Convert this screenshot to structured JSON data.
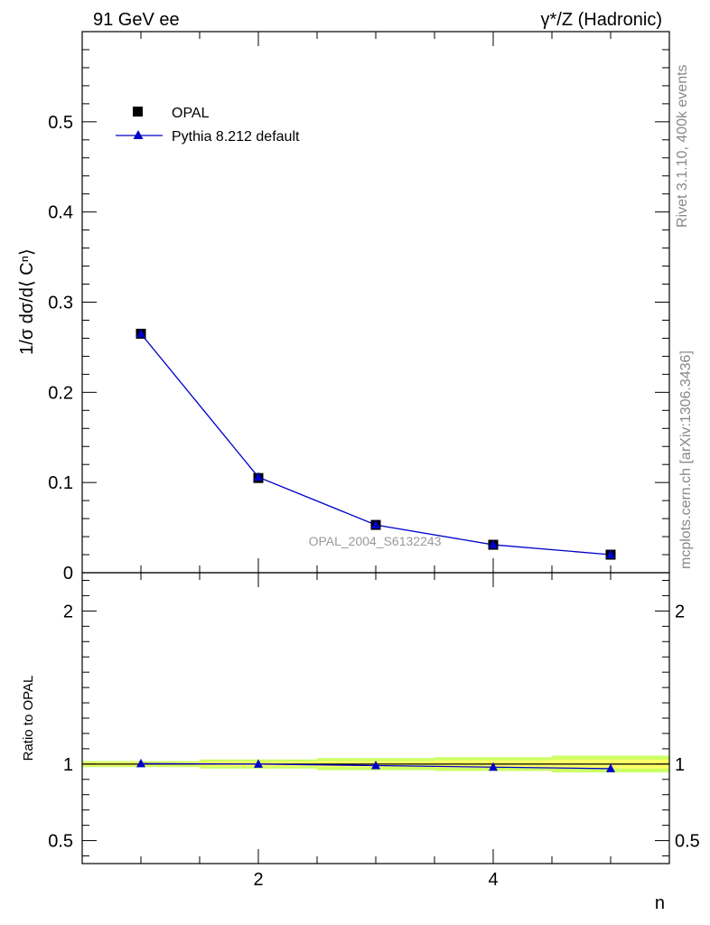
{
  "header": {
    "left": "91 GeV ee",
    "right": "γ*/Z (Hadronic)"
  },
  "side_labels": {
    "rivet": "Rivet 3.1.10,  400k events",
    "source": "mcplots.cern.ch [arXiv:1306.3436]"
  },
  "watermark": "OPAL_2004_S6132243",
  "legend": {
    "data_label": "OPAL",
    "mc_label": "Pythia 8.212 default"
  },
  "colors": {
    "data": "#000000",
    "mc": "#0000cc",
    "band_inner": "#ffff66",
    "band_outer": "#ccff66"
  },
  "chart_data": [
    {
      "type": "line",
      "panel": "main",
      "ylabel": "1/σ dσ/d⟨ Cⁿ⟩",
      "xlim": [
        0.5,
        5.5
      ],
      "ylim": [
        0,
        0.6
      ],
      "yticks": [
        0,
        0.1,
        0.2,
        0.3,
        0.4,
        0.5
      ],
      "ytick_labels": [
        "0",
        "0.1",
        "0.2",
        "0.3",
        "0.4",
        "0.5"
      ],
      "x": [
        1,
        2,
        3,
        4,
        5
      ],
      "series": [
        {
          "name": "OPAL",
          "marker": "square",
          "values": [
            0.265,
            0.105,
            0.053,
            0.031,
            0.02
          ]
        },
        {
          "name": "Pythia 8.212 default",
          "marker": "triangle",
          "values": [
            0.265,
            0.106,
            0.053,
            0.031,
            0.02
          ]
        }
      ]
    },
    {
      "type": "line",
      "panel": "ratio",
      "xlabel": "n",
      "ylabel": "Ratio to OPAL",
      "xlim": [
        0.5,
        5.5
      ],
      "ylim": [
        0.35,
        2.25
      ],
      "xticks": [
        2,
        4
      ],
      "xtick_labels": [
        "2",
        "4"
      ],
      "yticks": [
        0.5,
        1,
        2
      ],
      "ytick_labels": [
        "0.5",
        "1",
        "2"
      ],
      "x": [
        1,
        2,
        3,
        4,
        5
      ],
      "band_halfwidth_inner": [
        0.01,
        0.015,
        0.02,
        0.025,
        0.03
      ],
      "band_halfwidth_outer": [
        0.02,
        0.03,
        0.04,
        0.045,
        0.055
      ],
      "series": [
        {
          "name": "Pythia 8.212 default",
          "marker": "triangle",
          "values": [
            1.003,
            1.0,
            0.99,
            0.98,
            0.97
          ]
        }
      ]
    }
  ]
}
